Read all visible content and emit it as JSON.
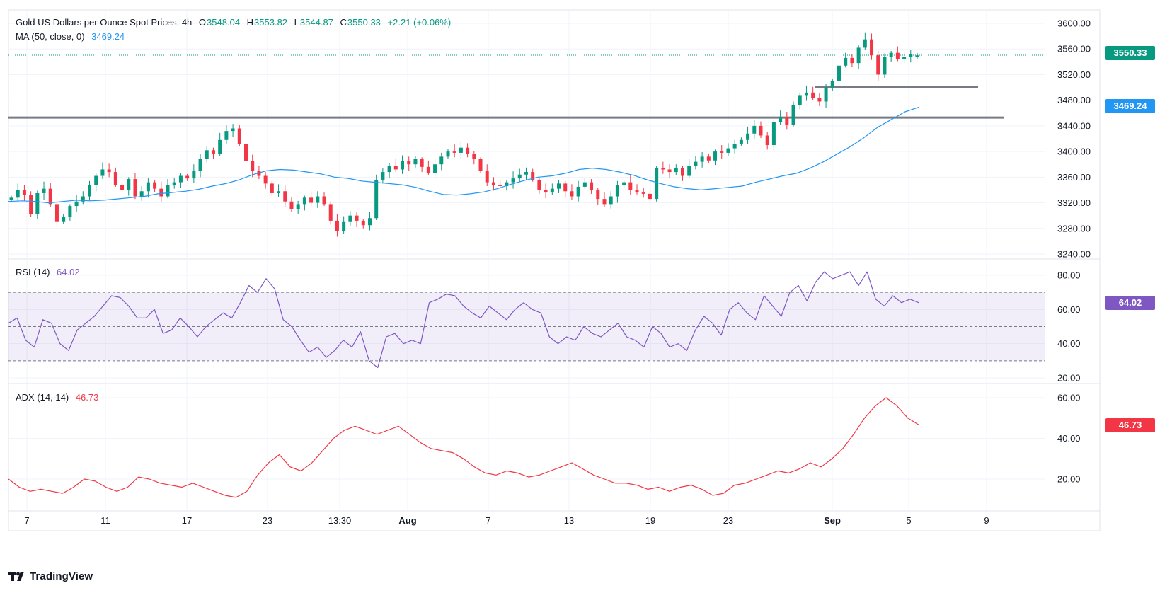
{
  "header": {
    "title": "Gold US Dollars per Ounce Spot Prices, 4h",
    "open_label": "O",
    "open": "3548.04",
    "high_label": "H",
    "high": "3553.82",
    "low_label": "L",
    "low": "3544.87",
    "close_label": "C",
    "close": "3550.33",
    "change": "+2.21 (+0.06%)"
  },
  "ma_legend": {
    "label": "MA (50, close, 0)",
    "value": "3469.24"
  },
  "rsi_legend": {
    "label": "RSI (14)",
    "value": "64.02"
  },
  "adx_legend": {
    "label": "ADX (14, 14)",
    "value": "46.73"
  },
  "price_tags": {
    "last": "3550.33",
    "ma": "3469.24",
    "rsi": "64.02",
    "adx": "46.73"
  },
  "branding": {
    "logo_text": "TradingView"
  },
  "colors": {
    "up": "#089981",
    "down": "#f23645",
    "ma": "#2196f3",
    "rsi": "#7e57c2",
    "adx": "#f23645",
    "level": "#787b86"
  },
  "chart_data": [
    {
      "type": "candlestick",
      "title": "Gold US Dollars per Ounce Spot Prices, 4h",
      "timeframe": "4h",
      "ylim": [
        3240,
        3600
      ],
      "y_ticks": [
        3240,
        3280,
        3320,
        3360,
        3400,
        3440,
        3480,
        3520,
        3560,
        3600
      ],
      "x_ticks": [
        "7",
        "11",
        "17",
        "23",
        "13:30",
        "Aug",
        "7",
        "13",
        "19",
        "23",
        "Sep",
        "5",
        "9"
      ],
      "ohlc_last": {
        "open": 3548.04,
        "high": 3553.82,
        "low": 3544.87,
        "close": 3550.33
      },
      "close_path": [
        3328,
        3340,
        3332,
        3302,
        3335,
        3342,
        3318,
        3290,
        3298,
        3315,
        3322,
        3330,
        3348,
        3362,
        3372,
        3368,
        3348,
        3340,
        3357,
        3330,
        3338,
        3352,
        3342,
        3330,
        3348,
        3352,
        3362,
        3358,
        3370,
        3388,
        3402,
        3396,
        3418,
        3432,
        3436,
        3412,
        3385,
        3370,
        3362,
        3350,
        3335,
        3338,
        3322,
        3310,
        3318,
        3328,
        3320,
        3330,
        3318,
        3292,
        3276,
        3290,
        3300,
        3292,
        3285,
        3296,
        3356,
        3368,
        3378,
        3372,
        3385,
        3380,
        3388,
        3376,
        3366,
        3380,
        3392,
        3400,
        3398,
        3406,
        3396,
        3388,
        3370,
        3352,
        3348,
        3346,
        3352,
        3358,
        3364,
        3368,
        3356,
        3340,
        3336,
        3342,
        3350,
        3338,
        3330,
        3345,
        3352,
        3340,
        3326,
        3318,
        3330,
        3348,
        3352,
        3340,
        3336,
        3334,
        3326,
        3374,
        3372,
        3368,
        3374,
        3362,
        3378,
        3384,
        3392,
        3386,
        3400,
        3398,
        3405,
        3412,
        3418,
        3428,
        3440,
        3425,
        3410,
        3446,
        3454,
        3442,
        3472,
        3488,
        3492,
        3484,
        3478,
        3500,
        3510,
        3534,
        3546,
        3538,
        3562,
        3575,
        3550,
        3520,
        3548,
        3554,
        3544,
        3548,
        3552,
        3550
      ],
      "horizontal_levels": [
        3453,
        3500
      ],
      "series": [
        {
          "name": "MA (50, close, 0)",
          "last": 3469.24,
          "values": [
            3322,
            3323,
            3322,
            3320,
            3322,
            3324,
            3323,
            3324,
            3326,
            3328,
            3330,
            3334,
            3336,
            3338,
            3341,
            3346,
            3350,
            3356,
            3364,
            3370,
            3372,
            3371,
            3368,
            3365,
            3360,
            3358,
            3354,
            3352,
            3350,
            3348,
            3344,
            3338,
            3333,
            3332,
            3334,
            3337,
            3342,
            3349,
            3355,
            3360,
            3362,
            3366,
            3372,
            3374,
            3372,
            3368,
            3363,
            3356,
            3350,
            3345,
            3342,
            3340,
            3342,
            3344,
            3346,
            3352,
            3357,
            3362,
            3366,
            3374,
            3384,
            3396,
            3408,
            3422,
            3438,
            3450,
            3462,
            3469
          ]
        }
      ]
    },
    {
      "type": "line",
      "title": "RSI (14)",
      "ylim": [
        20,
        85
      ],
      "y_ticks": [
        20,
        40,
        60,
        80
      ],
      "bands": [
        30,
        50,
        70
      ],
      "series": [
        {
          "name": "RSI (14)",
          "last": 64.02,
          "values": [
            52,
            55,
            42,
            38,
            54,
            52,
            40,
            36,
            48,
            52,
            56,
            62,
            68,
            67,
            62,
            55,
            55,
            60,
            46,
            48,
            55,
            50,
            44,
            50,
            54,
            58,
            55,
            64,
            74,
            70,
            78,
            72,
            54,
            50,
            42,
            35,
            38,
            32,
            36,
            42,
            38,
            47,
            30,
            26,
            44,
            46,
            40,
            42,
            40,
            64,
            66,
            69,
            68,
            62,
            58,
            55,
            62,
            58,
            54,
            60,
            64,
            60,
            58,
            44,
            40,
            44,
            42,
            50,
            46,
            44,
            48,
            52,
            44,
            42,
            38,
            50,
            46,
            38,
            40,
            36,
            48,
            56,
            52,
            45,
            60,
            64,
            58,
            54,
            68,
            62,
            56,
            70,
            74,
            65,
            76,
            82,
            78,
            80,
            82,
            74,
            82,
            66,
            62,
            68,
            64,
            66,
            64
          ]
        }
      ]
    },
    {
      "type": "line",
      "title": "ADX (14, 14)",
      "ylim": [
        8,
        64
      ],
      "y_ticks": [
        20,
        40,
        60
      ],
      "series": [
        {
          "name": "ADX (14, 14)",
          "last": 46.73,
          "values": [
            20,
            16,
            14,
            15,
            14,
            13,
            16,
            20,
            19,
            16,
            14,
            16,
            21,
            20,
            18,
            17,
            16,
            18,
            16,
            14,
            12,
            11,
            14,
            22,
            28,
            32,
            26,
            24,
            28,
            34,
            40,
            44,
            46,
            44,
            42,
            44,
            46,
            42,
            38,
            35,
            34,
            33,
            30,
            26,
            23,
            22,
            24,
            23,
            21,
            22,
            24,
            26,
            28,
            25,
            22,
            20,
            18,
            18,
            17,
            15,
            16,
            14,
            16,
            17,
            15,
            12,
            13,
            17,
            18,
            20,
            22,
            24,
            23,
            25,
            28,
            26,
            30,
            35,
            42,
            50,
            56,
            60,
            56,
            50,
            46.73
          ]
        }
      ]
    }
  ]
}
